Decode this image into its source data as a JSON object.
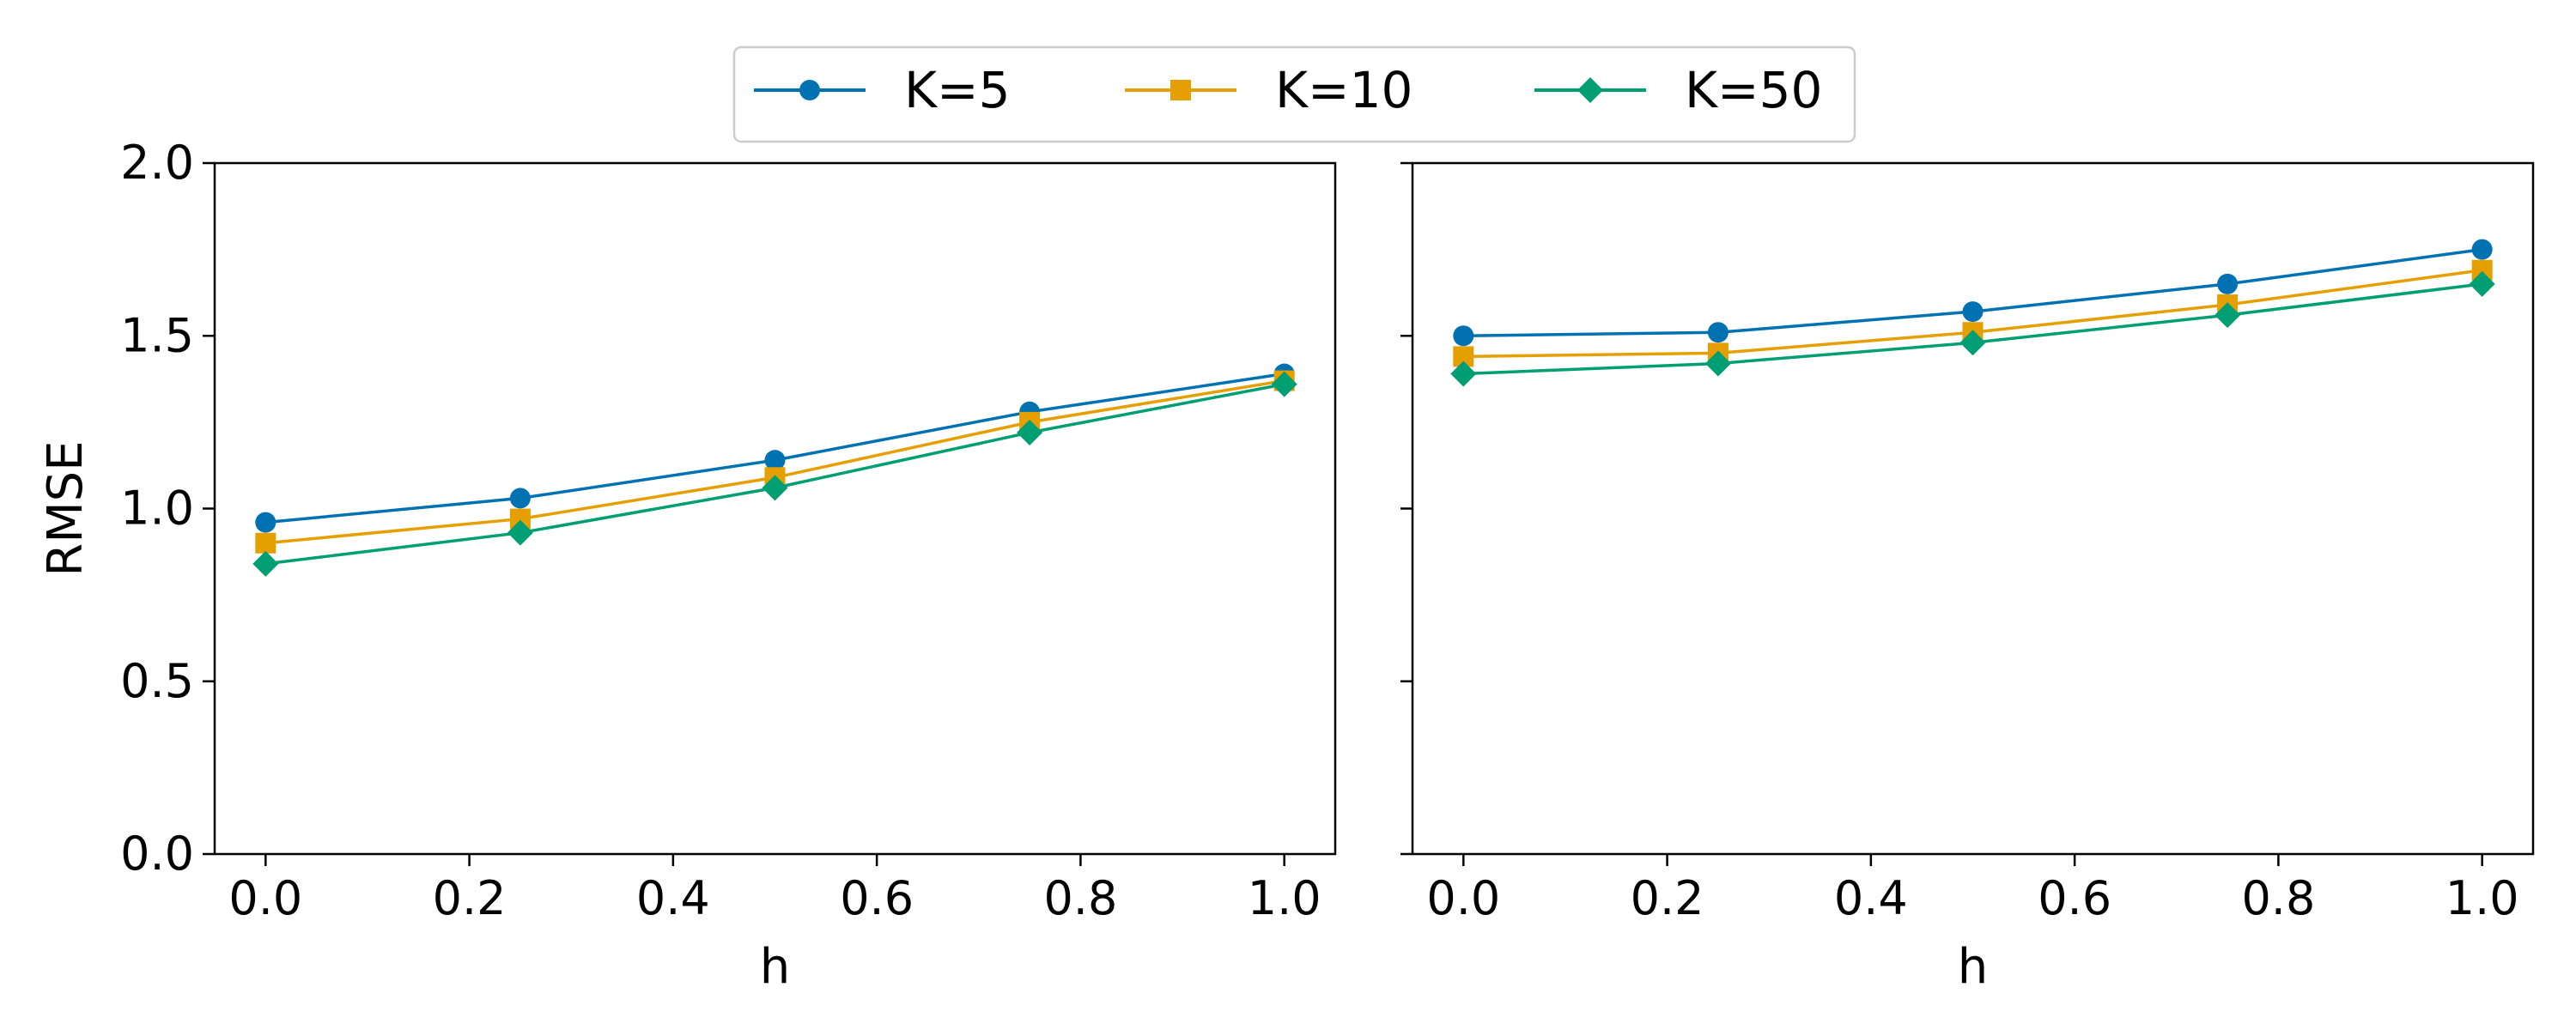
{
  "chart_data": {
    "type": "line",
    "shared_y": true,
    "legend": {
      "placement": "top-center",
      "ncol": 3
    },
    "ylabel": "RMSE",
    "ylim": [
      0,
      2.0
    ],
    "yticks": [
      0.0,
      0.5,
      1.0,
      1.5,
      2.0
    ],
    "ytick_labels": [
      "0.0",
      "0.5",
      "1.0",
      "1.5",
      "2.0"
    ],
    "xlim": [
      -0.05,
      1.05
    ],
    "xticks": [
      0.0,
      0.2,
      0.4,
      0.6,
      0.8,
      1.0
    ],
    "xtick_labels": [
      "0.0",
      "0.2",
      "0.4",
      "0.6",
      "0.8",
      "1.0"
    ],
    "series_style": [
      {
        "name": "K=5",
        "color": "#0072B2",
        "marker": "circle"
      },
      {
        "name": "K=10",
        "color": "#E69F00",
        "marker": "square"
      },
      {
        "name": "K=50",
        "color": "#009E73",
        "marker": "diamond"
      }
    ],
    "panels": [
      {
        "xlabel": "h",
        "x": [
          0.0,
          0.25,
          0.5,
          0.75,
          1.0
        ],
        "series": [
          {
            "name": "K=5",
            "values": [
              0.96,
              1.03,
              1.14,
              1.28,
              1.39
            ]
          },
          {
            "name": "K=10",
            "values": [
              0.9,
              0.97,
              1.09,
              1.25,
              1.37
            ]
          },
          {
            "name": "K=50",
            "values": [
              0.84,
              0.93,
              1.06,
              1.22,
              1.36
            ]
          }
        ]
      },
      {
        "xlabel": "h",
        "x": [
          0.0,
          0.25,
          0.5,
          0.75,
          1.0
        ],
        "series": [
          {
            "name": "K=5",
            "values": [
              1.5,
              1.51,
              1.57,
              1.65,
              1.75
            ]
          },
          {
            "name": "K=10",
            "values": [
              1.44,
              1.45,
              1.51,
              1.59,
              1.69
            ]
          },
          {
            "name": "K=50",
            "values": [
              1.39,
              1.42,
              1.48,
              1.56,
              1.65
            ]
          }
        ]
      }
    ]
  }
}
